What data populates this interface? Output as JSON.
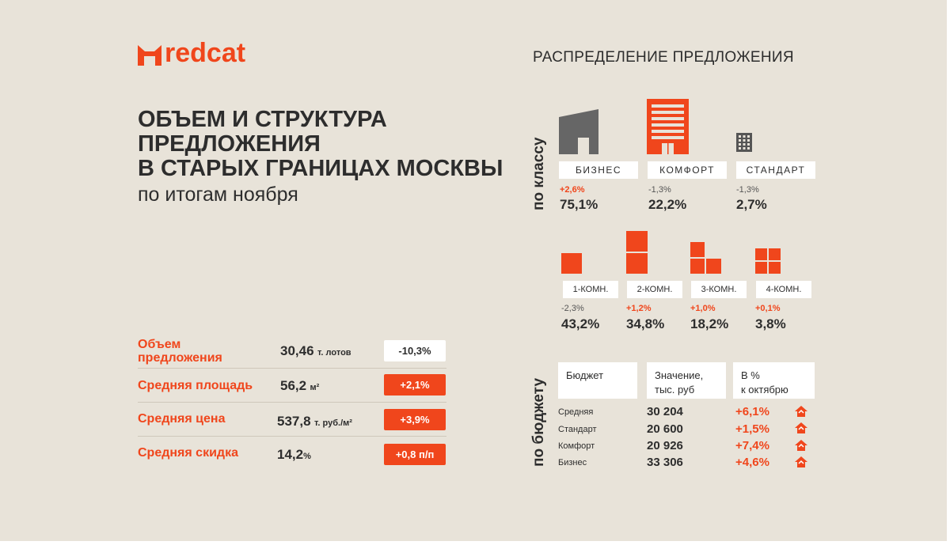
{
  "brand": {
    "name": "redcat",
    "accent": "#f0461c"
  },
  "title": {
    "lines": [
      "ОБЪЕМ И СТРУКТУРА",
      "ПРЕДЛОЖЕНИЯ",
      "В СТАРЫХ ГРАНИЦАХ МОСКВЫ"
    ],
    "subtitle": "по итогам ноября"
  },
  "distribution": {
    "title": "РАСПРЕДЕЛЕНИЕ ПРЕДЛОЖЕНИЯ",
    "by_class_label": "по классу",
    "by_budget_label": "по бюджету",
    "classes": [
      {
        "label": "БИЗНЕС",
        "delta": "+2,6%",
        "value": "75,1%"
      },
      {
        "label": "КОМФОРТ",
        "delta": "-1,3%",
        "value": "22,2%"
      },
      {
        "label": "СТАНДАРТ",
        "delta": "-1,3%",
        "value": "2,7%"
      }
    ],
    "rooms": [
      {
        "label": "1-КОМН.",
        "delta": "-2,3%",
        "value": "43,2%"
      },
      {
        "label": "2-КОМН.",
        "delta": "+1,2%",
        "value": "34,8%"
      },
      {
        "label": "3-КОМН.",
        "delta": "+1,0%",
        "value": "18,2%"
      },
      {
        "label": "4-КОМН.",
        "delta": "+0,1%",
        "value": "3,8%"
      }
    ],
    "budget": {
      "headers": [
        "Бюджет",
        "Значение,\nтыс. руб",
        "В %\nк октябрю"
      ],
      "rows": [
        {
          "label": "Средняя",
          "value": "30 204",
          "pct": "+6,1%"
        },
        {
          "label": "Стандарт",
          "value": "20 600",
          "pct": "+1,5%"
        },
        {
          "label": "Комфорт",
          "value": "20 926",
          "pct": "+7,4%"
        },
        {
          "label": "Бизнес",
          "value": "33 306",
          "pct": "+4,6%"
        }
      ]
    }
  },
  "stats": [
    {
      "label": "Объем\nпредложения",
      "value": "30,46",
      "unit": "т. лотов",
      "badge": "-10,3%",
      "badge_style": "white"
    },
    {
      "label": "Средняя площадь",
      "value": "56,2",
      "unit": "м²",
      "badge": "+2,1%",
      "badge_style": "red"
    },
    {
      "label": "Средняя цена",
      "value": "537,8",
      "unit": "т. руб./м²",
      "badge": "+3,9%",
      "badge_style": "red"
    },
    {
      "label": "Средняя скидка",
      "value": "14,2",
      "unit": "%",
      "badge": "+0,8 п/п",
      "badge_style": "red"
    }
  ]
}
